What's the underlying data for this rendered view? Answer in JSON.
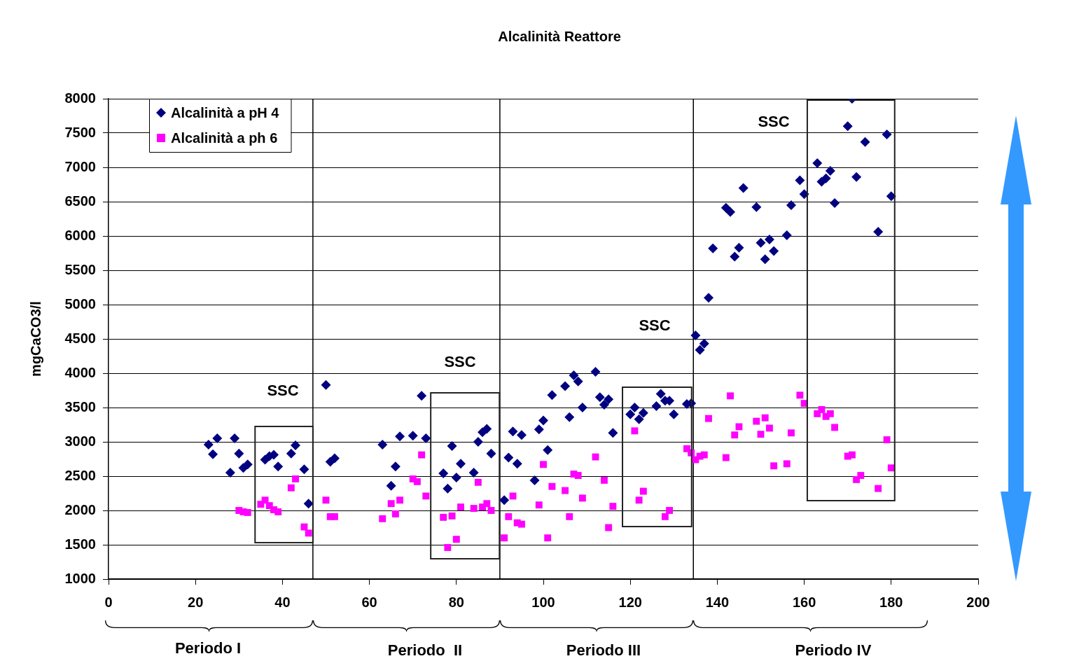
{
  "chart_data": {
    "type": "scatter",
    "title": "Alcalinità Reattore",
    "ylabel": "mgCaCO3/l",
    "xlim": [
      0,
      200
    ],
    "xticks": [
      0,
      20,
      40,
      60,
      80,
      100,
      120,
      140,
      160,
      180,
      200
    ],
    "ylim": [
      1000,
      8000
    ],
    "yticks": [
      1000,
      1500,
      2000,
      2500,
      3000,
      3500,
      4000,
      4500,
      5000,
      5500,
      6000,
      6500,
      7000,
      7500,
      8000
    ],
    "grid": "y",
    "legend": "top left",
    "series": [
      {
        "name": "Alcalinità a pH 4",
        "color": "#000080",
        "marker": "diamond",
        "x": [
          23,
          24,
          25,
          28,
          29,
          30,
          31,
          32,
          36,
          37,
          38,
          39,
          42,
          43,
          45,
          46,
          50,
          51,
          52,
          63,
          65,
          66,
          67,
          70,
          72,
          73,
          77,
          78,
          79,
          80,
          81,
          84,
          85,
          86,
          87,
          88,
          91,
          92,
          93,
          94,
          95,
          98,
          99,
          100,
          101,
          102,
          105,
          106,
          107,
          108,
          109,
          112,
          113,
          114,
          115,
          116,
          120,
          121,
          122,
          123,
          126,
          127,
          128,
          129,
          130,
          133,
          134,
          135,
          136,
          137,
          138,
          139,
          142,
          143,
          144,
          145,
          146,
          149,
          150,
          151,
          152,
          153,
          156,
          157,
          159,
          160,
          163,
          164,
          165,
          166,
          167,
          170,
          171,
          172,
          174,
          177,
          179,
          180
        ],
        "values": [
          2960,
          2820,
          3050,
          2550,
          3050,
          2830,
          2620,
          2670,
          2740,
          2790,
          2810,
          2640,
          2830,
          2950,
          2600,
          2100,
          3830,
          2710,
          2760,
          2960,
          2360,
          2640,
          3080,
          3090,
          3670,
          3050,
          2540,
          2320,
          2940,
          2480,
          2680,
          2550,
          3000,
          3140,
          3190,
          2830,
          2150,
          2770,
          3150,
          2680,
          3100,
          2440,
          3180,
          3310,
          2880,
          3680,
          3810,
          3360,
          3970,
          3880,
          3500,
          4020,
          3650,
          3540,
          3620,
          3130,
          3400,
          3500,
          3330,
          3420,
          3520,
          3700,
          3600,
          3600,
          3400,
          3550,
          3560,
          4550,
          4340,
          4430,
          5100,
          5820,
          6410,
          6350,
          5700,
          5830,
          6700,
          6420,
          5900,
          5660,
          5950,
          5780,
          6010,
          6450,
          6810,
          6610,
          7060,
          6790,
          6840,
          6950,
          6480,
          7600,
          8000,
          6860,
          7370,
          6060,
          7480,
          6580
        ]
      },
      {
        "name": "Alcalinità a ph 6",
        "color": "#ff00ff",
        "marker": "square",
        "x": [
          30,
          31,
          32,
          35,
          36,
          37,
          38,
          39,
          42,
          43,
          45,
          46,
          50,
          51,
          52,
          63,
          65,
          66,
          67,
          70,
          71,
          72,
          73,
          77,
          78,
          79,
          80,
          81,
          84,
          85,
          86,
          87,
          88,
          91,
          92,
          93,
          94,
          95,
          99,
          100,
          101,
          102,
          105,
          106,
          107,
          108,
          109,
          112,
          114,
          115,
          116,
          121,
          122,
          123,
          128,
          129,
          133,
          134,
          135,
          136,
          137,
          138,
          142,
          143,
          144,
          145,
          149,
          150,
          151,
          152,
          153,
          156,
          157,
          159,
          160,
          163,
          164,
          165,
          166,
          167,
          170,
          171,
          172,
          173,
          177,
          179,
          180
        ],
        "values": [
          2000,
          1980,
          1970,
          2090,
          2150,
          2070,
          2010,
          1980,
          2330,
          2460,
          1760,
          1670,
          2150,
          1910,
          1910,
          1880,
          2100,
          1950,
          2150,
          2460,
          2420,
          2810,
          2210,
          1900,
          1460,
          1920,
          1580,
          2050,
          2030,
          2410,
          2050,
          2100,
          2000,
          1600,
          1910,
          2210,
          1820,
          1800,
          2080,
          2670,
          1600,
          2350,
          2290,
          1910,
          2530,
          2510,
          2180,
          2780,
          2440,
          1750,
          2060,
          3160,
          2150,
          2280,
          1910,
          2000,
          2900,
          2840,
          2740,
          2790,
          2810,
          3340,
          2770,
          3670,
          3100,
          3220,
          3300,
          3110,
          3350,
          3200,
          2650,
          2680,
          3130,
          3680,
          3560,
          3410,
          3470,
          3370,
          3410,
          3210,
          2790,
          2810,
          2450,
          2510,
          2320,
          3030,
          2620
        ]
      }
    ],
    "ref_lines": [
      {
        "axis": "x",
        "value": 47,
        "color": "#000000"
      },
      {
        "axis": "x",
        "value": 90,
        "color": "#000000"
      },
      {
        "axis": "x",
        "value": 134.5,
        "color": "#000000"
      }
    ],
    "annotations": [
      "SSC",
      "SSC",
      "SSC",
      "SSC",
      "Periodo I",
      "Periodo  II",
      "Periodo III",
      "Periodo IV"
    ]
  }
}
